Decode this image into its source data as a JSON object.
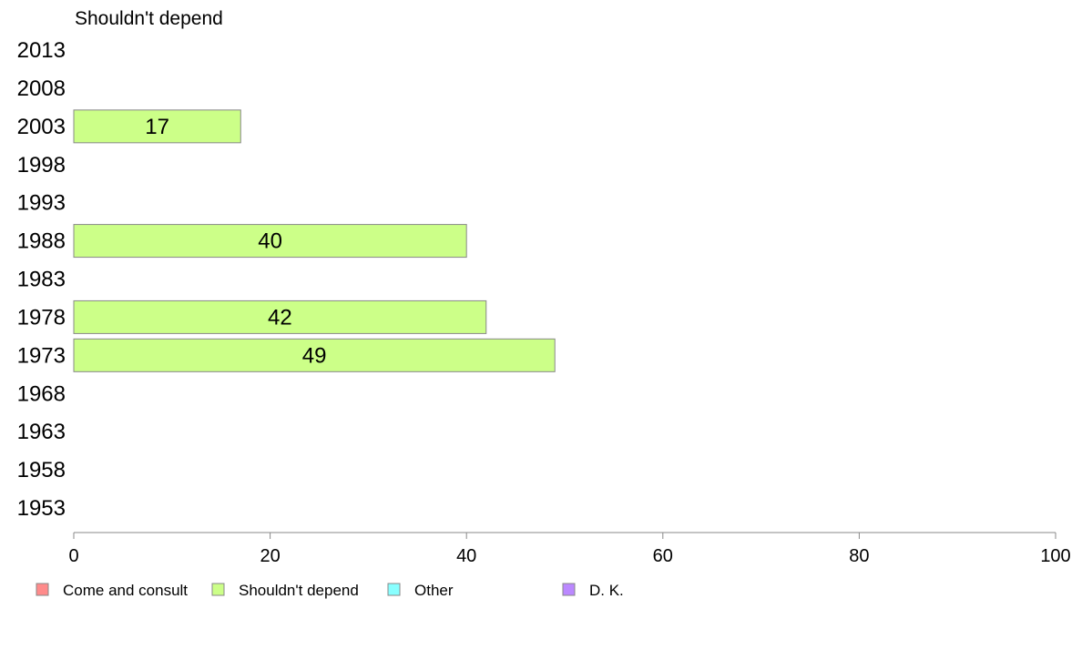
{
  "chart_data": {
    "type": "bar",
    "orientation": "horizontal",
    "title": "Shouldn't depend",
    "categories": [
      "1953",
      "1958",
      "1963",
      "1968",
      "1973",
      "1978",
      "1983",
      "1988",
      "1993",
      "1998",
      "2003",
      "2008",
      "2013"
    ],
    "series": [
      {
        "name": "Shouldn't depend",
        "color": "#ccff88",
        "values": [
          null,
          null,
          null,
          null,
          49,
          42,
          null,
          40,
          null,
          null,
          17,
          null,
          null
        ]
      }
    ],
    "value_labels": [
      null,
      null,
      null,
      null,
      "49",
      "42",
      null,
      "40",
      null,
      null,
      "17",
      null,
      null
    ],
    "xlim": [
      0,
      100
    ],
    "xticks": [
      0,
      20,
      40,
      60,
      80,
      100
    ],
    "xtick_labels": [
      "0",
      "20",
      "40",
      "60",
      "80",
      "100"
    ],
    "grid": false,
    "legend": {
      "position": "bottom",
      "items": [
        {
          "label": "Come and consult",
          "color": "#ff8b8b"
        },
        {
          "label": "Shouldn't depend",
          "color": "#ccff88"
        },
        {
          "label": "Other",
          "color": "#88ffff"
        },
        {
          "label": "D. K.",
          "color": "#bb88ff"
        }
      ]
    }
  }
}
